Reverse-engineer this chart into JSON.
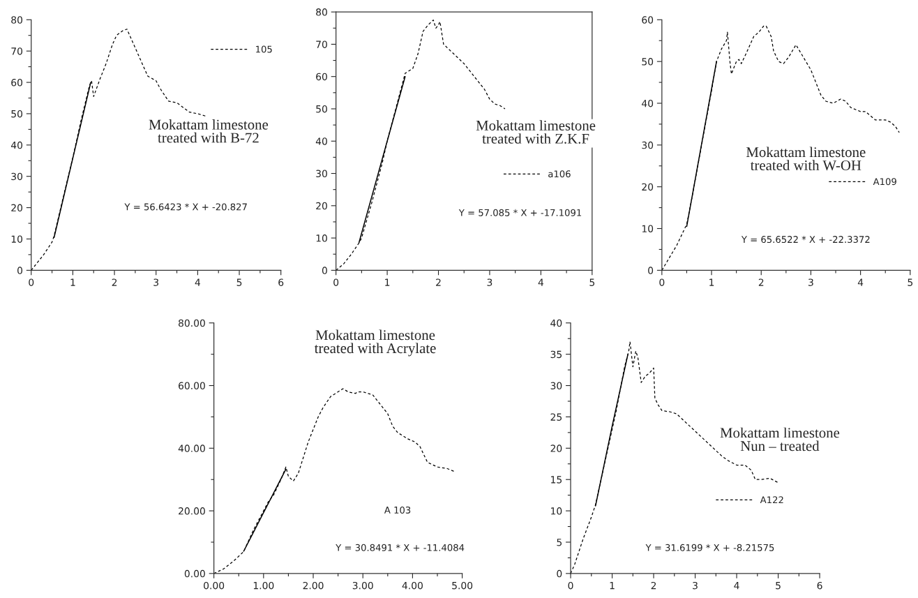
{
  "chart_data": [
    {
      "type": "line",
      "title": "Mokattam limestone\ntreated with B-72",
      "annotations": [
        "Y = 56.6423 * X + -20.827"
      ],
      "legend": "top right",
      "xlim": [
        0,
        6
      ],
      "xticks": [
        0,
        {
          "value": 0.5,
          "label": null
        },
        1,
        {
          "value": 1.5,
          "label": null
        },
        2,
        {
          "value": 2.5,
          "label": null
        },
        3,
        {
          "value": 3.5,
          "label": null
        },
        4,
        {
          "value": 4.5,
          "label": null
        },
        5,
        {
          "value": 5.5,
          "label": null
        },
        6
      ],
      "ylim": [
        0,
        80
      ],
      "yticks": [
        0,
        {
          "value": 5,
          "label": null
        },
        10,
        {
          "value": 15,
          "label": null
        },
        20,
        {
          "value": 25,
          "label": null
        },
        30,
        {
          "value": 35,
          "label": null
        },
        40,
        {
          "value": 45,
          "label": null
        },
        50,
        {
          "value": 55,
          "label": null
        },
        60,
        {
          "value": 65,
          "label": null
        },
        70,
        {
          "value": 75,
          "label": null
        },
        80
      ],
      "series": [
        {
          "name": "105",
          "color": "#000000",
          "line_style": "dashed",
          "x": [
            0,
            0.15,
            0.3,
            0.5,
            0.55,
            0.8,
            1.0,
            1.2,
            1.4,
            1.45,
            1.5,
            1.65,
            1.8,
            1.95,
            2.05,
            2.2,
            2.3,
            2.4,
            2.6,
            2.8,
            3.0,
            3.1,
            3.3,
            3.5,
            3.6,
            3.8,
            4.0,
            4.2
          ],
          "values": [
            0,
            2.5,
            5,
            9,
            11,
            25,
            36,
            48,
            59,
            60.5,
            55.5,
            61,
            66,
            72,
            75,
            76.5,
            77,
            74,
            68,
            62,
            60.5,
            58,
            54,
            53.5,
            52.5,
            50.5,
            50,
            49.2
          ]
        },
        {
          "type": "line",
          "color": "#000000",
          "line_style": "solid",
          "x": [
            0.55,
            1.43
          ],
          "values": [
            10.5,
            60
          ]
        }
      ]
    },
    {
      "type": "line",
      "title": "Mokattam limestone\ntreated with Z.K.F",
      "annotations": [
        "Y = 57.085 * X + -17.1091"
      ],
      "legend": "right",
      "xlim": [
        0,
        5
      ],
      "xticks": [
        0,
        {
          "value": 0.5,
          "label": null
        },
        1,
        {
          "value": 1.5,
          "label": null
        },
        2,
        {
          "value": 2.5,
          "label": null
        },
        3,
        {
          "value": 3.5,
          "label": null
        },
        4,
        {
          "value": 4.5,
          "label": null
        },
        5
      ],
      "ylim": [
        0,
        80
      ],
      "yticks": [
        0,
        {
          "value": 5,
          "label": null
        },
        10,
        {
          "value": 15,
          "label": null
        },
        20,
        {
          "value": 25,
          "label": null
        },
        30,
        {
          "value": 35,
          "label": null
        },
        40,
        {
          "value": 45,
          "label": null
        },
        50,
        {
          "value": 55,
          "label": null
        },
        60,
        {
          "value": 65,
          "label": null
        },
        70,
        {
          "value": 75,
          "label": null
        },
        80
      ],
      "series": [
        {
          "name": "a106",
          "color": "#000000",
          "line_style": "dashed",
          "x": [
            0,
            0.15,
            0.3,
            0.45,
            0.5,
            0.7,
            0.9,
            1.0,
            1.1,
            1.25,
            1.35,
            1.5,
            1.6,
            1.7,
            1.8,
            1.9,
            1.95,
            2.0,
            2.03,
            2.1,
            2.3,
            2.5,
            2.7,
            2.9,
            3.0,
            3.1,
            3.2,
            3.3
          ],
          "values": [
            0,
            2,
            5,
            8.5,
            10,
            21,
            33,
            40,
            46,
            55,
            61,
            62.5,
            67,
            74,
            76,
            77.5,
            75,
            76,
            77,
            70,
            67,
            64,
            60,
            56,
            53,
            51.5,
            51,
            50
          ]
        },
        {
          "type": "line",
          "color": "#000000",
          "line_style": "solid",
          "x": [
            0.45,
            1.35
          ],
          "values": [
            8.6,
            60
          ]
        }
      ]
    },
    {
      "type": "line",
      "title": "Mokattam limestone\ntreated with W-OH",
      "annotations": [
        "Y = 65.6522 * X + -22.3372"
      ],
      "legend": "bottom right",
      "xlim": [
        0,
        5
      ],
      "xticks": [
        0,
        {
          "value": 0.5,
          "label": null
        },
        1,
        {
          "value": 1.5,
          "label": null
        },
        2,
        {
          "value": 2.5,
          "label": null
        },
        3,
        {
          "value": 3.5,
          "label": null
        },
        4,
        {
          "value": 4.5,
          "label": null
        },
        5
      ],
      "ylim": [
        0,
        60
      ],
      "yticks": [
        0,
        {
          "value": 5,
          "label": null
        },
        10,
        {
          "value": 15,
          "label": null
        },
        20,
        {
          "value": 25,
          "label": null
        },
        30,
        {
          "value": 35,
          "label": null
        },
        40,
        {
          "value": 45,
          "label": null
        },
        50,
        {
          "value": 55,
          "label": null
        },
        60
      ],
      "series": [
        {
          "name": "A109",
          "color": "#000000",
          "line_style": "dashed",
          "x": [
            0,
            0.1,
            0.3,
            0.5,
            0.6,
            0.8,
            1.0,
            1.1,
            1.2,
            1.3,
            1.32,
            1.37,
            1.4,
            1.5,
            1.55,
            1.6,
            1.7,
            1.85,
            1.95,
            2.05,
            2.1,
            2.2,
            2.25,
            2.35,
            2.45,
            2.55,
            2.65,
            2.7,
            2.8,
            3.0,
            3.1,
            3.2,
            3.3,
            3.45,
            3.6,
            3.7,
            3.8,
            3.9,
            4.0,
            4.1,
            4.2,
            4.3,
            4.5,
            4.6,
            4.7,
            4.78
          ],
          "values": [
            0,
            2,
            6,
            11,
            17,
            30,
            43,
            50,
            53,
            55,
            57,
            50,
            47,
            50,
            50.5,
            49.5,
            52,
            56,
            57,
            58.5,
            58.5,
            56,
            52.5,
            50,
            49.5,
            51,
            53,
            54,
            52,
            48,
            45,
            42,
            40.5,
            40,
            41,
            40.5,
            39,
            38.5,
            38,
            38,
            37,
            36,
            36,
            35.5,
            34.5,
            33
          ]
        },
        {
          "type": "line",
          "color": "#000000",
          "line_style": "solid",
          "x": [
            0.5,
            1.1
          ],
          "values": [
            10.5,
            50
          ]
        }
      ]
    },
    {
      "type": "line",
      "title": "Mokattam limestone\ntreated with Acrylate",
      "annotations": [
        "A 103",
        "Y = 30.8491 * X + -11.4084"
      ],
      "xlim": [
        0,
        5
      ],
      "xticks": [
        {
          "value": 0,
          "label": "0.00"
        },
        {
          "value": 0.5,
          "label": null
        },
        {
          "value": 1,
          "label": "1.00"
        },
        {
          "value": 1.5,
          "label": null
        },
        {
          "value": 2,
          "label": "2.00"
        },
        {
          "value": 2.5,
          "label": null
        },
        {
          "value": 3,
          "label": "3.00"
        },
        {
          "value": 3.5,
          "label": null
        },
        {
          "value": 4,
          "label": "4.00"
        },
        {
          "value": 4.5,
          "label": null
        },
        {
          "value": 5,
          "label": "5.00"
        }
      ],
      "ylim": [
        0,
        80
      ],
      "yticks": [
        {
          "value": 0,
          "label": "0.00"
        },
        {
          "value": 10,
          "label": null
        },
        {
          "value": 20,
          "label": "20.00"
        },
        {
          "value": 30,
          "label": null
        },
        {
          "value": 40,
          "label": "40.00"
        },
        {
          "value": 50,
          "label": null
        },
        {
          "value": 60,
          "label": "60.00"
        },
        {
          "value": 70,
          "label": null
        },
        {
          "value": 80,
          "label": "80.00"
        }
      ],
      "series": [
        {
          "color": "#000000",
          "line_style": "dashed",
          "x": [
            0,
            0.2,
            0.4,
            0.6,
            0.8,
            1.0,
            1.1,
            1.2,
            1.35,
            1.45,
            1.5,
            1.6,
            1.7,
            1.8,
            1.9,
            2.0,
            2.1,
            2.2,
            2.35,
            2.5,
            2.6,
            2.7,
            2.85,
            2.9,
            3.0,
            3.2,
            3.3,
            3.5,
            3.6,
            3.7,
            3.9,
            4.05,
            4.15,
            4.3,
            4.5,
            4.7,
            4.85
          ],
          "values": [
            0,
            1.5,
            4,
            7,
            14,
            20,
            23,
            25,
            30,
            34,
            31,
            29.5,
            32,
            37,
            42,
            46,
            50,
            53,
            56.5,
            58,
            59,
            58,
            57.5,
            58,
            58,
            57,
            55,
            51,
            47,
            45,
            43,
            42,
            40.5,
            35.5,
            34,
            33.5,
            32.5
          ]
        },
        {
          "type": "line",
          "color": "#000000",
          "line_style": "solid",
          "x": [
            0.6,
            1.45
          ],
          "values": [
            7.1,
            33.3
          ]
        }
      ]
    },
    {
      "type": "line",
      "title": "Mokattam limestone\nNun – treated",
      "annotations": [
        "Y = 31.6199 * X + -8.21575"
      ],
      "legend": "bottom",
      "xlim": [
        0,
        6
      ],
      "xticks": [
        0,
        {
          "value": 0.5,
          "label": null
        },
        1,
        {
          "value": 1.5,
          "label": null
        },
        2,
        {
          "value": 2.5,
          "label": null
        },
        3,
        {
          "value": 3.5,
          "label": null
        },
        4,
        {
          "value": 4.5,
          "label": null
        },
        5,
        {
          "value": 5.5,
          "label": null
        },
        6
      ],
      "ylim": [
        0,
        40
      ],
      "yticks": [
        0,
        {
          "value": 2.5,
          "label": null
        },
        5,
        {
          "value": 7.5,
          "label": null
        },
        10,
        {
          "value": 12.5,
          "label": null
        },
        15,
        {
          "value": 17.5,
          "label": null
        },
        20,
        {
          "value": 22.5,
          "label": null
        },
        25,
        {
          "value": 27.5,
          "label": null
        },
        30,
        {
          "value": 32.5,
          "label": null
        },
        35,
        {
          "value": 37.5,
          "label": null
        },
        40
      ],
      "series": [
        {
          "name": "A122",
          "color": "#000000",
          "line_style": "dashed",
          "x": [
            0,
            0.1,
            0.3,
            0.5,
            0.6,
            0.7,
            0.9,
            1.1,
            1.3,
            1.4,
            1.43,
            1.5,
            1.57,
            1.62,
            1.7,
            1.8,
            1.9,
            2.0,
            2.03,
            2.1,
            2.2,
            2.4,
            2.55,
            3.65,
            3.8,
            4.0,
            4.2,
            4.35,
            4.45,
            4.6,
            4.8,
            5.0
          ],
          "values": [
            0,
            1.5,
            5.5,
            9,
            11,
            14,
            20,
            26,
            33,
            35.5,
            37,
            33,
            35.5,
            34.5,
            30.5,
            31.5,
            32,
            32.8,
            28,
            27,
            26,
            25.8,
            25.5,
            18.7,
            18,
            17.3,
            17.3,
            16.5,
            15,
            15,
            15.2,
            14.5
          ]
        },
        {
          "type": "line",
          "color": "#000000",
          "line_style": "solid",
          "x": [
            0.6,
            1.0,
            1.38
          ],
          "values": [
            10.8,
            23.5,
            35
          ]
        }
      ]
    }
  ]
}
